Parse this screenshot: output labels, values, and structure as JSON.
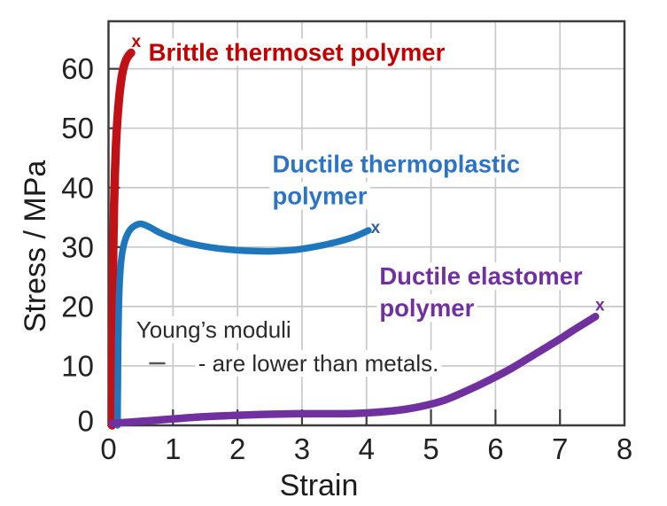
{
  "figure": {
    "background": "#ffffff",
    "axis_color": "#3d3d3d",
    "grid_color": "#c9c9c9"
  },
  "chart_data": {
    "type": "line",
    "title": "",
    "xlabel": "Strain",
    "ylabel": "Stress / MPa",
    "xlim": [
      0,
      8
    ],
    "ylim": [
      0,
      68
    ],
    "xticks": [
      0,
      1,
      2,
      3,
      4,
      5,
      6,
      7,
      8
    ],
    "yticks": [
      0,
      10,
      20,
      30,
      40,
      50,
      60
    ],
    "grid": true,
    "legend_position": "none",
    "series": [
      {
        "name": "Brittle thermoset polymer",
        "color": "#c01216",
        "width": 9.5,
        "points": [
          [
            0.055,
            0
          ],
          [
            0.058,
            8
          ],
          [
            0.062,
            16
          ],
          [
            0.068,
            24
          ],
          [
            0.076,
            31
          ],
          [
            0.086,
            37
          ],
          [
            0.1,
            42.5
          ],
          [
            0.115,
            47
          ],
          [
            0.135,
            51
          ],
          [
            0.16,
            54.5
          ],
          [
            0.19,
            57.5
          ],
          [
            0.225,
            59.8
          ],
          [
            0.265,
            61.3
          ],
          [
            0.31,
            62.2
          ],
          [
            0.35,
            62.7
          ]
        ],
        "end_marker": {
          "x": 0.43,
          "y": 64.5,
          "symbol": "x",
          "color": "#c00000"
        }
      },
      {
        "name": "Ductile thermoplastic polymer",
        "color": "#1e77bd",
        "width": 7.5,
        "points": [
          [
            0.14,
            0
          ],
          [
            0.145,
            7
          ],
          [
            0.15,
            14
          ],
          [
            0.16,
            20
          ],
          [
            0.175,
            24.5
          ],
          [
            0.2,
            28
          ],
          [
            0.24,
            30.5
          ],
          [
            0.3,
            32.3
          ],
          [
            0.38,
            33.4
          ],
          [
            0.5,
            33.9
          ],
          [
            0.63,
            33.4
          ],
          [
            0.78,
            32.5
          ],
          [
            0.95,
            31.7
          ],
          [
            1.2,
            30.8
          ],
          [
            1.5,
            30.1
          ],
          [
            1.85,
            29.6
          ],
          [
            2.2,
            29.35
          ],
          [
            2.55,
            29.3
          ],
          [
            2.9,
            29.55
          ],
          [
            3.2,
            30.05
          ],
          [
            3.5,
            30.75
          ],
          [
            3.8,
            31.7
          ],
          [
            4.03,
            32.8
          ]
        ],
        "end_marker": {
          "x": 4.14,
          "y": 33.2,
          "symbol": "x",
          "color": "#3a5f94"
        }
      },
      {
        "name": "Ductile elastomer polymer",
        "color": "#7030a0",
        "width": 8.5,
        "points": [
          [
            0.06,
            0.35
          ],
          [
            0.4,
            0.6
          ],
          [
            0.9,
            1.0
          ],
          [
            1.4,
            1.4
          ],
          [
            1.9,
            1.65
          ],
          [
            2.4,
            1.85
          ],
          [
            2.9,
            1.95
          ],
          [
            3.4,
            1.95
          ],
          [
            3.8,
            2.0
          ],
          [
            4.15,
            2.2
          ],
          [
            4.5,
            2.55
          ],
          [
            4.85,
            3.2
          ],
          [
            5.2,
            4.2
          ],
          [
            5.55,
            5.8
          ],
          [
            5.9,
            7.6
          ],
          [
            6.25,
            9.6
          ],
          [
            6.6,
            11.9
          ],
          [
            6.95,
            14.2
          ],
          [
            7.25,
            16.3
          ],
          [
            7.55,
            18.3
          ]
        ],
        "end_marker": {
          "x": 7.62,
          "y": 20.1,
          "symbol": "x",
          "color": "#7030a0"
        }
      }
    ],
    "annotations": [
      {
        "id": "label-brittle-thermoset",
        "lines": [
          "Brittle thermoset polymer"
        ],
        "x": 0.62,
        "y": 62.8,
        "color": "#c00000",
        "bold": true
      },
      {
        "id": "label-ductile-thermoplastic",
        "lines": [
          "Ductile thermoplastic",
          "polymer"
        ],
        "x": 2.54,
        "y": 44.0,
        "color": "#2e74c4",
        "bold": true
      },
      {
        "id": "label-ductile-elastomer",
        "lines": [
          "Ductile elastomer",
          "polymer"
        ],
        "x": 4.2,
        "y": 25.1,
        "color": "#7030a0",
        "bold": true
      },
      {
        "id": "note-youngs-moduli",
        "lines": [
          "Young’s moduli"
        ],
        "x": 0.43,
        "y": 16.1,
        "color": "#2b2b2b",
        "bold": false
      },
      {
        "id": "note-lower-than-metals",
        "lines": [
          "- are lower than metals."
        ],
        "x": 1.39,
        "y": 10.44,
        "color": "#2b2b2b",
        "bold": false
      }
    ],
    "dash_mark": {
      "x1": 0.63,
      "x2": 0.88,
      "y": 10.44,
      "color": "#555555"
    }
  }
}
